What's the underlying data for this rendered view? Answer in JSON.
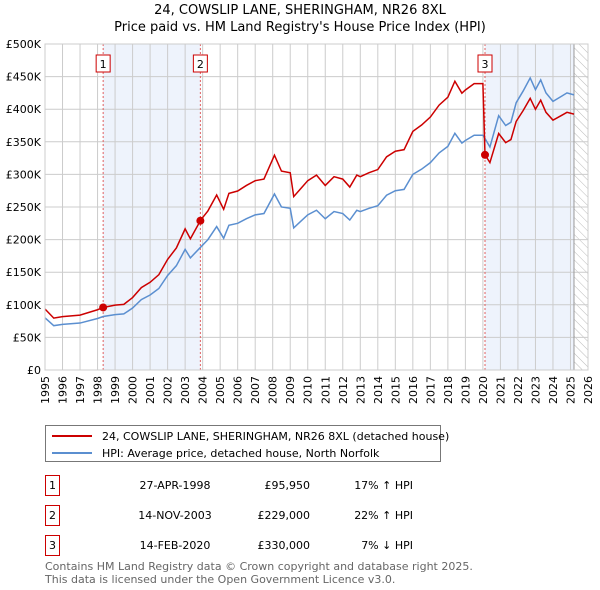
{
  "chart_data": {
    "type": "line",
    "title": "24, COWSLIP LANE, SHERINGHAM, NR26 8XL",
    "subtitle": "Price paid vs. HM Land Registry's House Price Index (HPI)",
    "xlim": [
      1995,
      2026
    ],
    "ylim": [
      0,
      500000
    ],
    "x_ticks": [
      "1995",
      "1996",
      "1997",
      "1998",
      "1999",
      "2000",
      "2001",
      "2002",
      "2003",
      "2004",
      "2005",
      "2006",
      "2007",
      "2008",
      "2009",
      "2010",
      "2011",
      "2012",
      "2013",
      "2014",
      "2015",
      "2016",
      "2017",
      "2018",
      "2019",
      "2020",
      "2021",
      "2022",
      "2023",
      "2024",
      "2025",
      "2026"
    ],
    "y_ticks": [
      {
        "v": 0,
        "label": "£0"
      },
      {
        "v": 50000,
        "label": "£50K"
      },
      {
        "v": 100000,
        "label": "£100K"
      },
      {
        "v": 150000,
        "label": "£150K"
      },
      {
        "v": 200000,
        "label": "£200K"
      },
      {
        "v": 250000,
        "label": "£250K"
      },
      {
        "v": 300000,
        "label": "£300K"
      },
      {
        "v": 350000,
        "label": "£350K"
      },
      {
        "v": 400000,
        "label": "£400K"
      },
      {
        "v": 450000,
        "label": "£450K"
      },
      {
        "v": 500000,
        "label": "£500K"
      }
    ],
    "grid": true,
    "forecast_start": 2025.2,
    "hpi_series": {
      "name": "HPI: Average price, detached house, North Norfolk",
      "color": "#5b8fd0",
      "x": [
        1995.0,
        1995.5,
        1996,
        1997,
        1998,
        1998.32,
        1999,
        1999.5,
        2000,
        2000.5,
        2001,
        2001.5,
        2002,
        2002.5,
        2003,
        2003.3,
        2003.87,
        2004.3,
        2004.8,
        2005.2,
        2005.5,
        2006,
        2006.5,
        2007,
        2007.5,
        2008.1,
        2008.5,
        2009,
        2009.2,
        2009.6,
        2010,
        2010.5,
        2011,
        2011.5,
        2012,
        2012.4,
        2012.8,
        2013,
        2013.5,
        2014,
        2014.5,
        2015,
        2015.5,
        2016,
        2016.5,
        2017,
        2017.5,
        2018,
        2018.4,
        2018.8,
        2019,
        2019.5,
        2020,
        2020.12,
        2020.4,
        2020.9,
        2021.3,
        2021.6,
        2021.9,
        2022.3,
        2022.7,
        2023,
        2023.3,
        2023.6,
        2024,
        2024.5,
        2024.8,
        2025.2
      ],
      "y": [
        80000,
        68000,
        70000,
        72000,
        79000,
        82000,
        85000,
        86000,
        95000,
        108000,
        115000,
        125000,
        145000,
        160000,
        185000,
        172000,
        188000,
        200000,
        220000,
        202000,
        222000,
        225000,
        232000,
        238000,
        240000,
        270000,
        250000,
        248000,
        218000,
        228000,
        238000,
        245000,
        232000,
        243000,
        240000,
        230000,
        245000,
        243000,
        248000,
        252000,
        268000,
        275000,
        277000,
        300000,
        308000,
        318000,
        333000,
        343000,
        363000,
        348000,
        352000,
        360000,
        360000,
        355000,
        342000,
        390000,
        375000,
        380000,
        410000,
        428000,
        448000,
        430000,
        445000,
        425000,
        412000,
        420000,
        425000,
        422000
      ]
    },
    "price_series": {
      "name": "24, COWSLIP LANE, SHERINGHAM, NR26 8XL (detached house)",
      "color": "#cc0000",
      "relative_to_hpi": [
        {
          "from": 1995,
          "to": 2003.87,
          "factor": 1.17
        },
        {
          "from": 2003.87,
          "to": 2020.12,
          "factor": 1.22
        },
        {
          "from": 2020.12,
          "to": 2026,
          "factor": 0.93
        }
      ]
    },
    "sales": [
      {
        "num": "1",
        "x": 1998.32,
        "price": 95950
      },
      {
        "num": "2",
        "x": 2003.87,
        "price": 229000
      },
      {
        "num": "3",
        "x": 2020.12,
        "price": 330000
      }
    ],
    "shaded_ranges": [
      [
        1998.32,
        2003.87
      ],
      [
        2020.12,
        2025.2
      ]
    ]
  },
  "legend": {
    "price_label": "24, COWSLIP LANE, SHERINGHAM, NR26 8XL (detached house)",
    "hpi_label": "HPI: Average price, detached house, North Norfolk"
  },
  "table": [
    {
      "num": "1",
      "date": "27-APR-1998",
      "price": "£95,950",
      "hpi": "17% ↑ HPI"
    },
    {
      "num": "2",
      "date": "14-NOV-2003",
      "price": "£229,000",
      "hpi": "22% ↑ HPI"
    },
    {
      "num": "3",
      "date": "14-FEB-2020",
      "price": "£330,000",
      "hpi": "7% ↓ HPI"
    }
  ],
  "footer": {
    "line1": "Contains HM Land Registry data © Crown copyright and database right 2025.",
    "line2": "This data is licensed under the Open Government Licence v3.0."
  }
}
